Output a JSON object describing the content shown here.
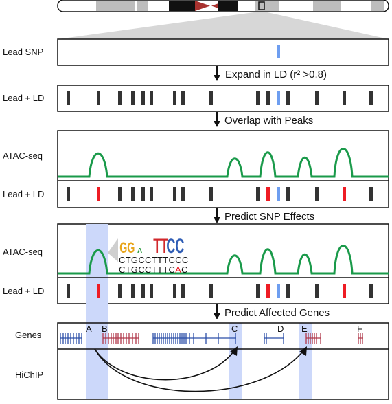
{
  "labels": {
    "lead_snp": "Lead SNP",
    "lead_ld": "Lead + LD",
    "atac": "ATAC-seq",
    "genes": "Genes",
    "hichip": "HiChIP"
  },
  "steps": {
    "expand": "Expand in LD (r² >0.8)",
    "overlap": "Overlap with Peaks",
    "predict_snp": "Predict SNP Effects",
    "predict_genes": "Predict Affected Genes"
  },
  "sequence": {
    "ref_line": "CTGCCTTTCCC",
    "alt_line_prefix": "CTGCCTTTC",
    "alt_base": "A",
    "alt_line_suffix": "C"
  },
  "gene_letters": [
    "A",
    "B",
    "C",
    "D",
    "E",
    "F"
  ],
  "colors": {
    "snp_lead": "#6e9ef0",
    "snp_overlap": "#ee1c24",
    "snp_default": "#333333",
    "peak": "#1a9a4a",
    "highlight": "#ccd8fa",
    "gene_blue": "#2b4ea8",
    "gene_red": "#b0384a",
    "chrom_dark": "#111111",
    "chrom_centromere": "#a8322f"
  }
}
